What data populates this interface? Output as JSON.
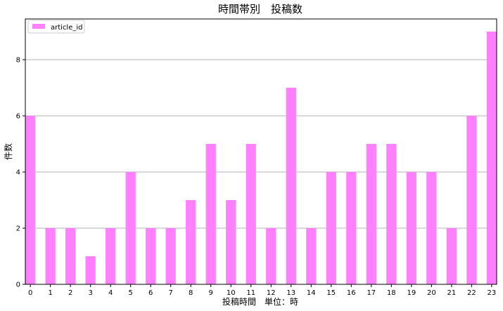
{
  "chart_data": {
    "type": "bar",
    "title": "時間帯別　投稿数",
    "xlabel": "投稿時間　単位：時",
    "ylabel": "件数",
    "categories": [
      "0",
      "1",
      "2",
      "3",
      "4",
      "5",
      "6",
      "7",
      "8",
      "9",
      "10",
      "11",
      "12",
      "13",
      "14",
      "15",
      "16",
      "17",
      "18",
      "19",
      "20",
      "21",
      "22",
      "23"
    ],
    "series": [
      {
        "name": "article_id",
        "color": "#ff80ff",
        "values": [
          6,
          2,
          2,
          1,
          2,
          4,
          2,
          2,
          3,
          5,
          3,
          5,
          2,
          7,
          2,
          4,
          4,
          5,
          5,
          4,
          4,
          2,
          6,
          9
        ]
      }
    ],
    "ylim": [
      0,
      9.45
    ],
    "yticks": [
      0,
      2,
      4,
      6,
      8
    ],
    "grid": "y",
    "legend_position": "top-left"
  }
}
